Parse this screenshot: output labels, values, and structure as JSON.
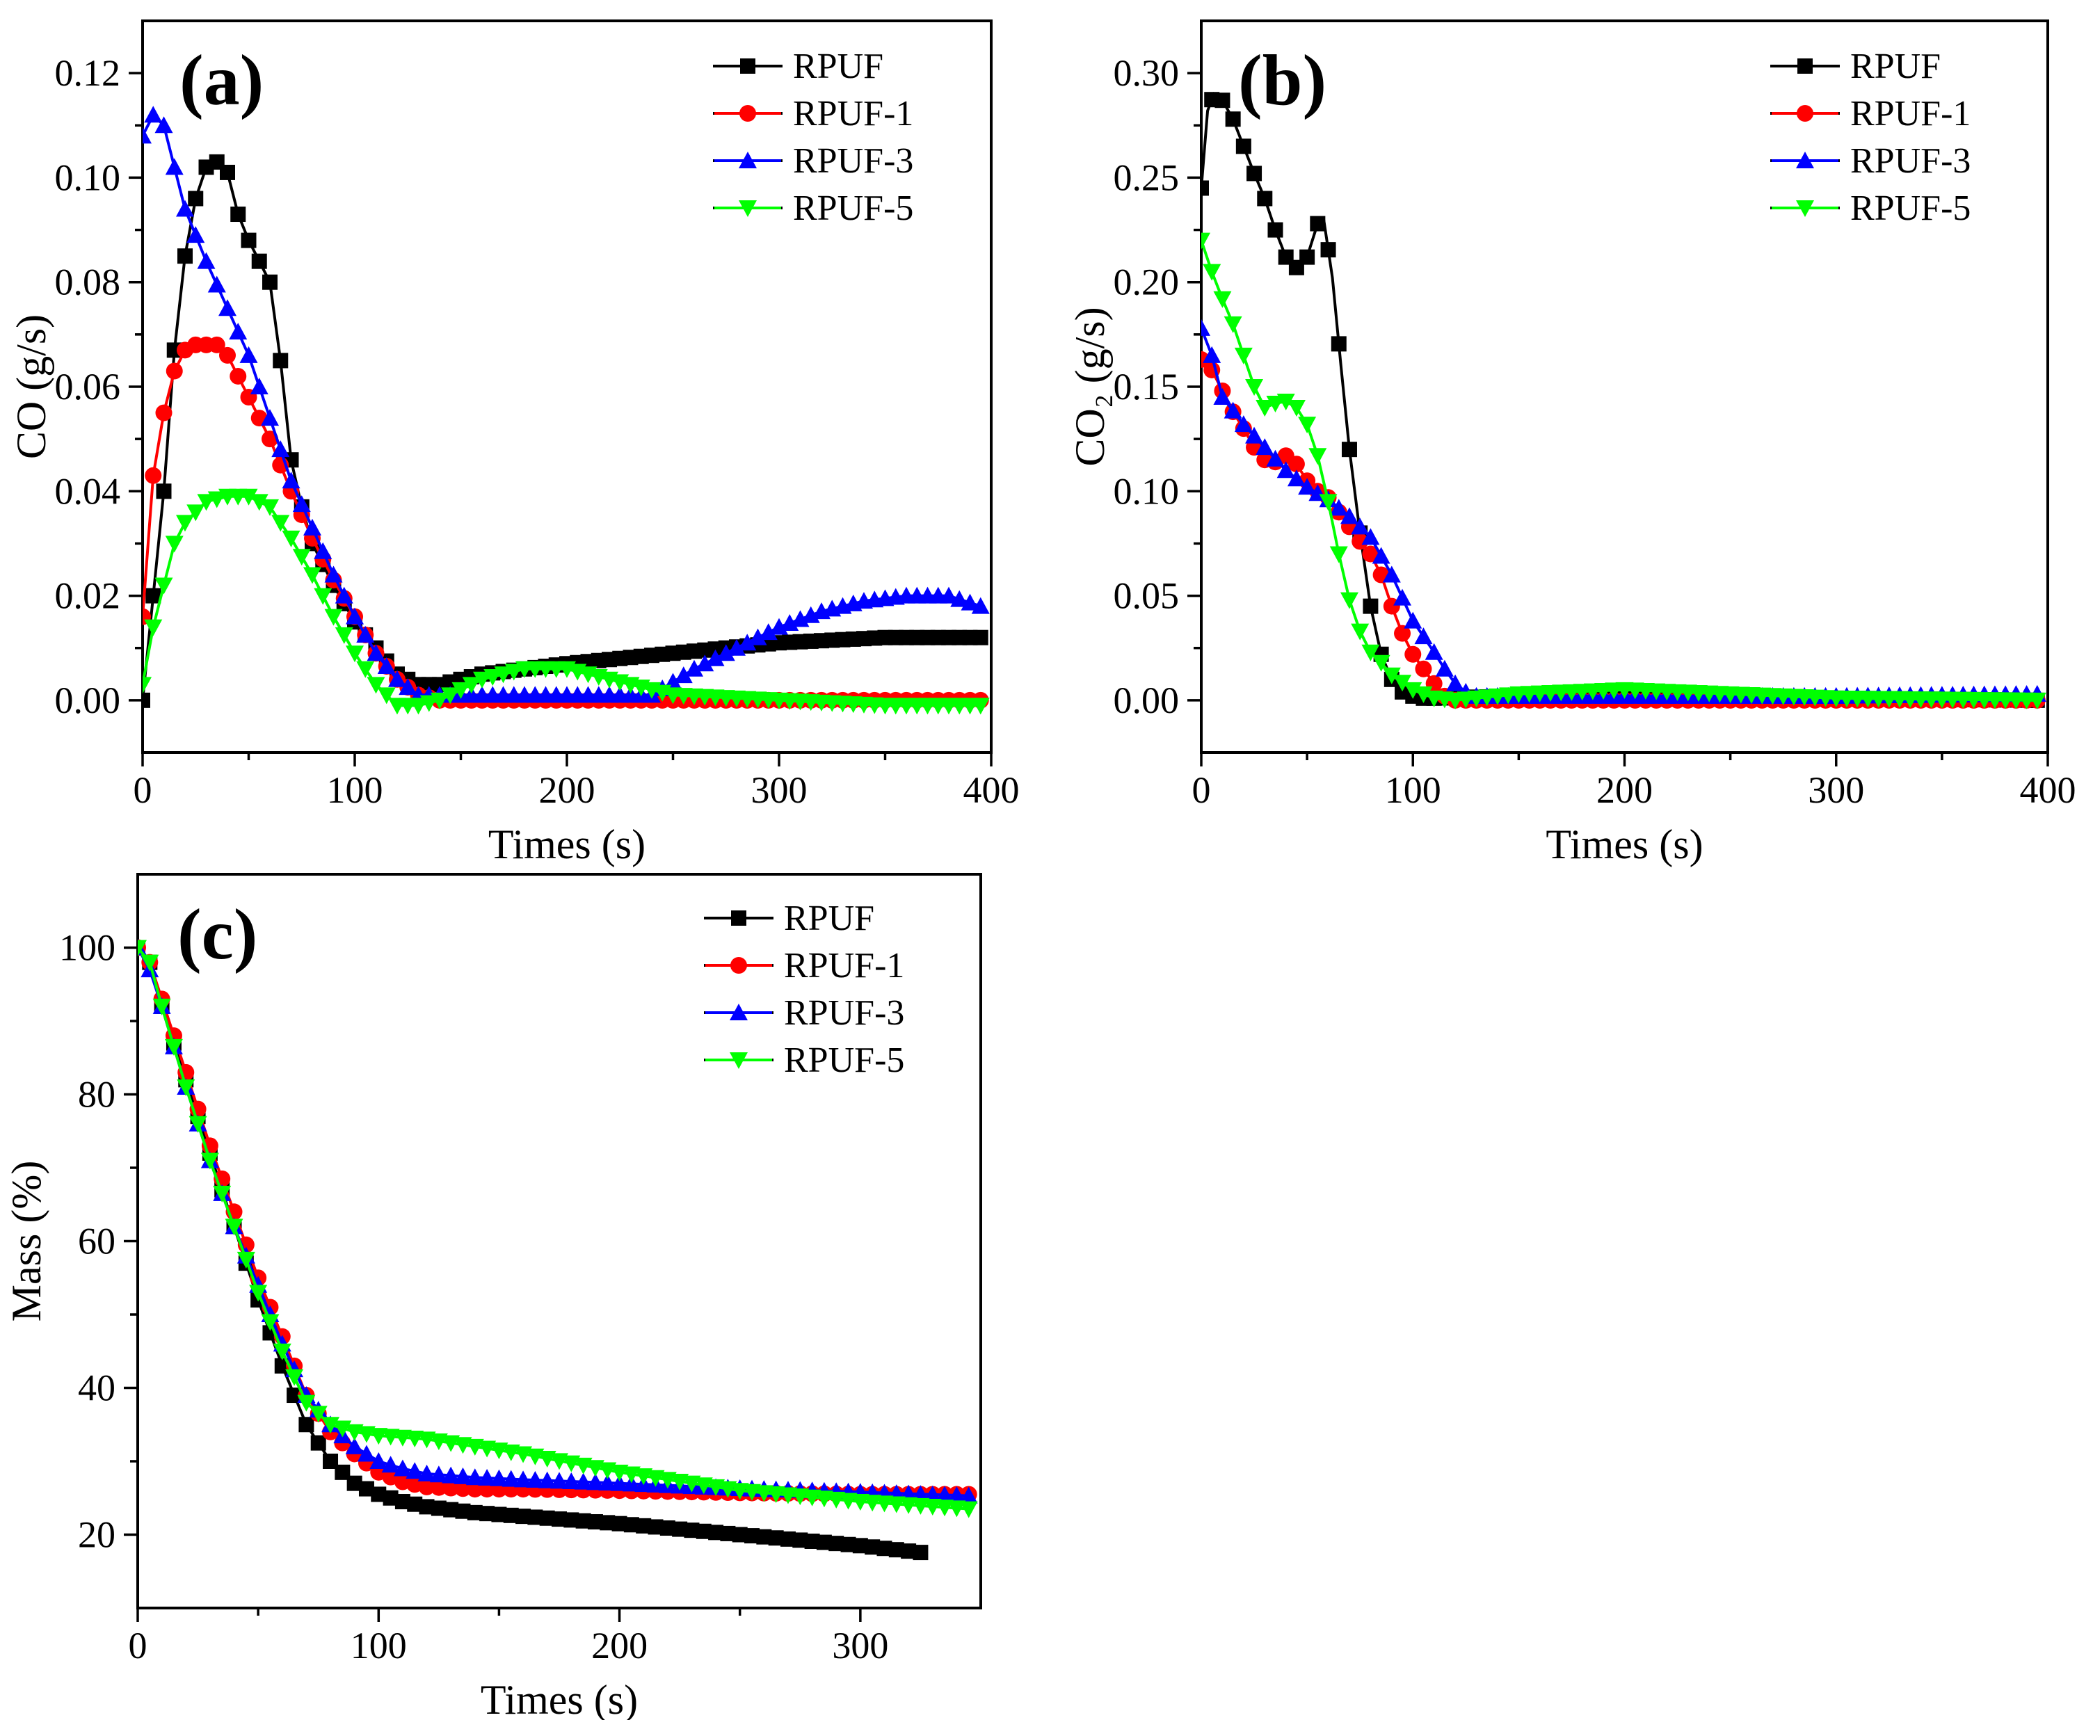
{
  "figure": {
    "series_names": [
      "RPUF",
      "RPUF-1",
      "RPUF-3",
      "RPUF-5"
    ]
  },
  "series_style": [
    {
      "name": "RPUF",
      "color": "#000000",
      "marker": "square"
    },
    {
      "name": "RPUF-1",
      "color": "#ff0000",
      "marker": "circle"
    },
    {
      "name": "RPUF-3",
      "color": "#0000ff",
      "marker": "triangle-up"
    },
    {
      "name": "RPUF-5",
      "color": "#00ff00",
      "marker": "triangle-down"
    }
  ],
  "chart_data": [
    {
      "panel": "(a)",
      "type": "line",
      "xlabel": "Times (s)",
      "ylabel": "CO (g/s)",
      "xlim": [
        0,
        400
      ],
      "ylim": [
        -0.01,
        0.13
      ],
      "xticks": [
        0,
        100,
        200,
        300,
        400
      ],
      "xtick_labels": [
        "0",
        "100",
        "200",
        "300",
        "400"
      ],
      "yticks": [
        0,
        0.02,
        0.04,
        0.06,
        0.08,
        0.1,
        0.12
      ],
      "ytick_labels": [
        "0.00",
        "0.02",
        "0.04",
        "0.06",
        "0.08",
        "0.10",
        "0.12"
      ],
      "legend_location": "top-right",
      "series": [
        {
          "name": "RPUF",
          "x": [
            0,
            5,
            10,
            15,
            20,
            25,
            30,
            35,
            40,
            45,
            50,
            55,
            60,
            65,
            70,
            75,
            80,
            90,
            100,
            110,
            120,
            130,
            140,
            150,
            160,
            180,
            200,
            250,
            300,
            350,
            395
          ],
          "y": [
            0.0,
            0.02,
            0.04,
            0.067,
            0.085,
            0.096,
            0.102,
            0.103,
            0.101,
            0.093,
            0.088,
            0.084,
            0.08,
            0.065,
            0.046,
            0.037,
            0.03,
            0.022,
            0.015,
            0.01,
            0.005,
            0.003,
            0.003,
            0.004,
            0.005,
            0.006,
            0.007,
            0.009,
            0.011,
            0.012,
            0.012
          ]
        },
        {
          "name": "RPUF-1",
          "x": [
            0,
            5,
            10,
            15,
            20,
            25,
            30,
            35,
            40,
            50,
            60,
            70,
            80,
            90,
            100,
            110,
            120,
            130,
            140,
            200,
            300,
            395
          ],
          "y": [
            0.016,
            0.043,
            0.055,
            0.063,
            0.067,
            0.068,
            0.068,
            0.068,
            0.066,
            0.058,
            0.05,
            0.04,
            0.031,
            0.023,
            0.016,
            0.009,
            0.004,
            0.001,
            0.0,
            0.0,
            0.0,
            0.0
          ]
        },
        {
          "name": "RPUF-3",
          "x": [
            0,
            5,
            10,
            20,
            30,
            40,
            50,
            60,
            70,
            80,
            90,
            100,
            110,
            120,
            130,
            150,
            200,
            240,
            260,
            280,
            300,
            320,
            340,
            360,
            380,
            395
          ],
          "y": [
            0.108,
            0.112,
            0.11,
            0.094,
            0.084,
            0.075,
            0.066,
            0.054,
            0.042,
            0.033,
            0.024,
            0.016,
            0.009,
            0.004,
            0.001,
            0.001,
            0.001,
            0.001,
            0.006,
            0.01,
            0.014,
            0.017,
            0.019,
            0.02,
            0.02,
            0.018
          ]
        },
        {
          "name": "RPUF-5",
          "x": [
            0,
            5,
            10,
            15,
            20,
            30,
            40,
            50,
            60,
            70,
            80,
            90,
            100,
            110,
            120,
            130,
            140,
            160,
            180,
            200,
            220,
            250,
            300,
            350,
            395
          ],
          "y": [
            0.003,
            0.014,
            0.022,
            0.03,
            0.034,
            0.038,
            0.039,
            0.039,
            0.037,
            0.031,
            0.024,
            0.016,
            0.009,
            0.003,
            -0.001,
            -0.001,
            0.0,
            0.004,
            0.006,
            0.006,
            0.004,
            0.001,
            0.0,
            -0.001,
            -0.001
          ]
        }
      ]
    },
    {
      "panel": "(b)",
      "type": "line",
      "xlabel": "Times (s)",
      "ylabel": "CO₂ (g/s)",
      "xlim": [
        0,
        400
      ],
      "ylim": [
        -0.025,
        0.325
      ],
      "xticks": [
        0,
        100,
        200,
        300,
        400
      ],
      "xtick_labels": [
        "0",
        "100",
        "200",
        "300",
        "400"
      ],
      "yticks": [
        0,
        0.05,
        0.1,
        0.15,
        0.2,
        0.25,
        0.3
      ],
      "ytick_labels": [
        "0.00",
        "0.05",
        "0.10",
        "0.15",
        "0.20",
        "0.25",
        "0.30"
      ],
      "legend_location": "top-right",
      "series": [
        {
          "name": "RPUF",
          "x": [
            0,
            3,
            6,
            10,
            15,
            20,
            25,
            30,
            35,
            40,
            45,
            50,
            55,
            58,
            62,
            66,
            70,
            75,
            80,
            85,
            90,
            95,
            100,
            105,
            110,
            150,
            200,
            300,
            395
          ],
          "y": [
            0.245,
            0.282,
            0.29,
            0.287,
            0.278,
            0.265,
            0.252,
            0.24,
            0.225,
            0.212,
            0.207,
            0.212,
            0.228,
            0.229,
            0.202,
            0.16,
            0.12,
            0.08,
            0.045,
            0.022,
            0.01,
            0.004,
            0.002,
            0.001,
            0.001,
            0.002,
            0.003,
            0.001,
            0.0
          ]
        },
        {
          "name": "RPUF-1",
          "x": [
            0,
            5,
            10,
            15,
            20,
            25,
            30,
            35,
            40,
            45,
            50,
            55,
            60,
            65,
            70,
            75,
            80,
            85,
            90,
            95,
            100,
            105,
            110,
            115,
            120,
            200,
            300,
            395
          ],
          "y": [
            0.163,
            0.158,
            0.148,
            0.138,
            0.13,
            0.121,
            0.115,
            0.114,
            0.117,
            0.113,
            0.105,
            0.1,
            0.097,
            0.09,
            0.083,
            0.076,
            0.07,
            0.06,
            0.045,
            0.032,
            0.022,
            0.015,
            0.008,
            0.002,
            0.0,
            0.0,
            0.0,
            0.0
          ]
        },
        {
          "name": "RPUF-3",
          "x": [
            0,
            5,
            10,
            20,
            30,
            40,
            50,
            60,
            70,
            80,
            90,
            100,
            110,
            115,
            120,
            125,
            130,
            200,
            300,
            395
          ],
          "y": [
            0.178,
            0.165,
            0.145,
            0.132,
            0.121,
            0.11,
            0.102,
            0.096,
            0.088,
            0.078,
            0.06,
            0.038,
            0.023,
            0.015,
            0.008,
            0.004,
            0.002,
            0.002,
            0.002,
            0.003
          ]
        },
        {
          "name": "RPUF-5",
          "x": [
            0,
            5,
            10,
            15,
            20,
            25,
            30,
            35,
            40,
            45,
            50,
            55,
            60,
            65,
            70,
            75,
            80,
            85,
            90,
            100,
            110,
            120,
            150,
            200,
            250,
            300,
            395
          ],
          "y": [
            0.22,
            0.205,
            0.192,
            0.18,
            0.165,
            0.15,
            0.14,
            0.142,
            0.143,
            0.14,
            0.132,
            0.117,
            0.095,
            0.07,
            0.048,
            0.033,
            0.023,
            0.018,
            0.012,
            0.005,
            0.001,
            0.0,
            0.003,
            0.005,
            0.003,
            0.001,
            0.0
          ]
        }
      ]
    },
    {
      "panel": "(c)",
      "type": "line",
      "xlabel": "Times (s)",
      "ylabel": "Mass (%)",
      "xlim": [
        0,
        350
      ],
      "ylim": [
        10,
        110
      ],
      "xticks": [
        0,
        100,
        200,
        300
      ],
      "xtick_labels": [
        "0",
        "100",
        "200",
        "300"
      ],
      "yticks": [
        20,
        40,
        60,
        80,
        100
      ],
      "ytick_labels": [
        "20",
        "40",
        "60",
        "80",
        "100"
      ],
      "legend_location": "top-right",
      "series": [
        {
          "name": "RPUF",
          "x": [
            0,
            5,
            10,
            20,
            30,
            40,
            50,
            60,
            70,
            80,
            90,
            100,
            110,
            120,
            140,
            160,
            200,
            250,
            300,
            327
          ],
          "y": [
            100,
            98,
            92,
            82,
            72,
            62,
            52,
            43,
            35,
            30,
            27,
            25.5,
            24.5,
            23.8,
            23,
            22.5,
            21.5,
            20,
            18.5,
            17.5
          ]
        },
        {
          "name": "RPUF-1",
          "x": [
            0,
            5,
            10,
            20,
            30,
            40,
            50,
            60,
            70,
            80,
            90,
            100,
            110,
            120,
            140,
            160,
            200,
            250,
            300,
            345
          ],
          "y": [
            100,
            98,
            93,
            83,
            73,
            64,
            55,
            47,
            39,
            34,
            31,
            28.5,
            27.2,
            26.5,
            26.2,
            26.2,
            26,
            25.7,
            25.5,
            25.5
          ]
        },
        {
          "name": "RPUF-3",
          "x": [
            0,
            5,
            10,
            20,
            30,
            40,
            50,
            60,
            70,
            80,
            90,
            100,
            110,
            120,
            140,
            160,
            200,
            250,
            300,
            345
          ],
          "y": [
            100,
            97,
            92,
            81,
            71,
            62,
            54,
            46,
            39,
            35,
            32,
            30,
            29,
            28.3,
            27.8,
            27.5,
            27,
            26.3,
            25.8,
            25.3
          ]
        },
        {
          "name": "RPUF-5",
          "x": [
            0,
            5,
            10,
            20,
            30,
            40,
            50,
            60,
            70,
            80,
            90,
            100,
            120,
            140,
            160,
            200,
            250,
            300,
            345
          ],
          "y": [
            100,
            98,
            92,
            81,
            71,
            62,
            53,
            45,
            38,
            35,
            34,
            33.5,
            33,
            32,
            31,
            28.5,
            26,
            24.5,
            23.5
          ]
        }
      ]
    }
  ]
}
